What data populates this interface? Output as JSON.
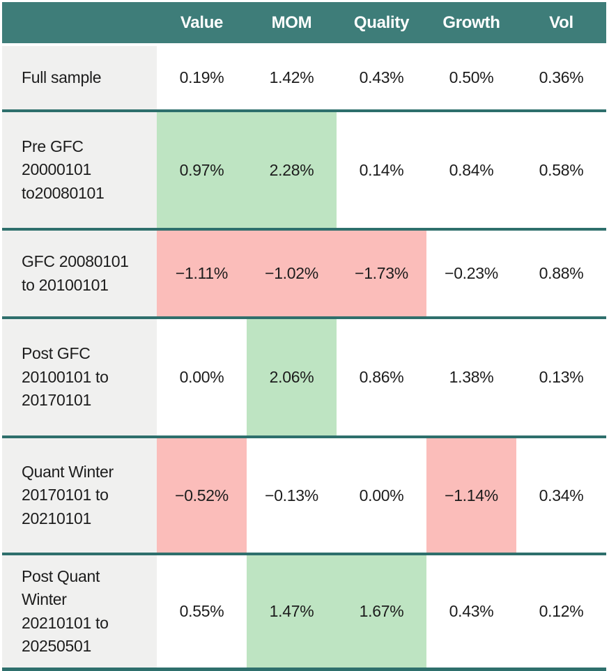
{
  "table": {
    "columns": [
      "Value",
      "MOM",
      "Quality",
      "Growth",
      "Vol"
    ],
    "rows": [
      {
        "label": "Full sample",
        "values": [
          "0.19%",
          "1.42%",
          "0.43%",
          "0.50%",
          "0.36%"
        ],
        "highlights": [
          "none",
          "none",
          "none",
          "none",
          "none"
        ]
      },
      {
        "label": "Pre GFC 20000101 to20080101",
        "values": [
          "0.97%",
          "2.28%",
          "0.14%",
          "0.84%",
          "0.58%"
        ],
        "highlights": [
          "green",
          "green",
          "none",
          "none",
          "none"
        ]
      },
      {
        "label": "GFC 20080101 to 20100101",
        "values": [
          "−1.11%",
          "−1.02%",
          "−1.73%",
          "−0.23%",
          "0.88%"
        ],
        "highlights": [
          "red",
          "red",
          "red",
          "none",
          "none"
        ]
      },
      {
        "label": "Post GFC 20100101 to 20170101",
        "values": [
          "0.00%",
          "2.06%",
          "0.86%",
          "1.38%",
          "0.13%"
        ],
        "highlights": [
          "none",
          "green",
          "none",
          "none",
          "none"
        ]
      },
      {
        "label": "Quant Winter 20170101 to 20210101",
        "values": [
          "−0.52%",
          "−0.13%",
          "0.00%",
          "−1.14%",
          "0.34%"
        ],
        "highlights": [
          "red",
          "none",
          "none",
          "red",
          "none"
        ]
      },
      {
        "label": "Post Quant Winter 20210101 to 20250501",
        "values": [
          "0.55%",
          "1.47%",
          "1.67%",
          "0.43%",
          "0.12%"
        ],
        "highlights": [
          "none",
          "green",
          "green",
          "none",
          "none"
        ]
      }
    ]
  },
  "colors": {
    "header_bg": "#3E7D79",
    "separator": "#2E6F6C",
    "positive_highlight": "#BEE4C2",
    "negative_highlight": "#FBBDBA",
    "label_bg": "#F0F0EF",
    "header_text": "#FFFFFF",
    "cell_text": "#1C1C1C"
  },
  "chart_data": {
    "type": "table",
    "columns": [
      "Value",
      "MOM",
      "Quality",
      "Growth",
      "Vol"
    ],
    "row_labels": [
      "Full sample",
      "Pre GFC 20000101 to20080101",
      "GFC 20080101 to 20100101",
      "Post GFC 20100101 to 20170101",
      "Quant Winter 20170101 to 20210101",
      "Post Quant Winter 20210101 to 20250501"
    ],
    "values_pct": [
      [
        0.19,
        1.42,
        0.43,
        0.5,
        0.36
      ],
      [
        0.97,
        2.28,
        0.14,
        0.84,
        0.58
      ],
      [
        -1.11,
        -1.02,
        -1.73,
        -0.23,
        0.88
      ],
      [
        0.0,
        2.06,
        0.86,
        1.38,
        0.13
      ],
      [
        -0.52,
        -0.13,
        0.0,
        -1.14,
        0.34
      ],
      [
        0.55,
        1.47,
        1.67,
        0.43,
        0.12
      ]
    ],
    "units": "percent",
    "highlight_green_cells": [
      [
        1,
        "Value"
      ],
      [
        1,
        "MOM"
      ],
      [
        3,
        "MOM"
      ],
      [
        5,
        "MOM"
      ],
      [
        5,
        "Quality"
      ]
    ],
    "highlight_red_cells": [
      [
        2,
        "Value"
      ],
      [
        2,
        "MOM"
      ],
      [
        2,
        "Quality"
      ],
      [
        4,
        "Value"
      ],
      [
        4,
        "Growth"
      ]
    ],
    "legend_position": "none",
    "grid": "row-separators"
  }
}
